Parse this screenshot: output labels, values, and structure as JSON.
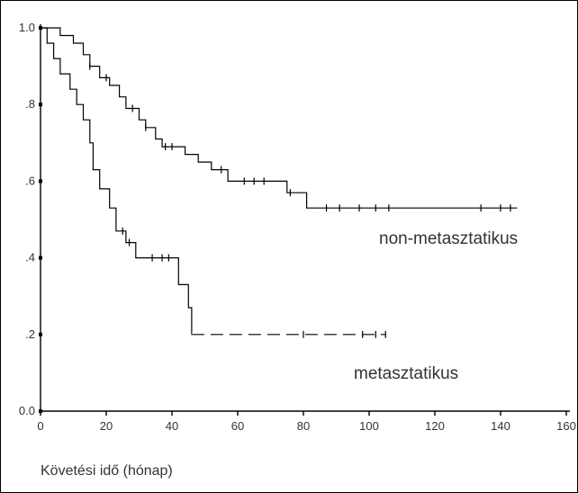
{
  "chart_data": {
    "type": "line",
    "title": "",
    "xlabel": "Követési idő (hónap)",
    "ylabel": "",
    "xlim": [
      0,
      160
    ],
    "ylim": [
      0,
      1
    ],
    "x_ticks": [
      0,
      20,
      40,
      60,
      80,
      100,
      120,
      140,
      160
    ],
    "y_ticks": [
      {
        "value": 0.0,
        "label": "0.0"
      },
      {
        "value": 0.2,
        "label": ".2"
      },
      {
        "value": 0.4,
        "label": ".4"
      },
      {
        "value": 0.6,
        "label": ".6"
      },
      {
        "value": 0.8,
        "label": ".8"
      },
      {
        "value": 1.0,
        "label": "1.0"
      }
    ],
    "grid": false,
    "series": [
      {
        "name": "non-metasztatikus",
        "style": "solid",
        "steps": [
          [
            0,
            1.0
          ],
          [
            6,
            1.0
          ],
          [
            6,
            0.98
          ],
          [
            10,
            0.98
          ],
          [
            10,
            0.96
          ],
          [
            13,
            0.96
          ],
          [
            13,
            0.93
          ],
          [
            15,
            0.93
          ],
          [
            15,
            0.9
          ],
          [
            18,
            0.9
          ],
          [
            18,
            0.87
          ],
          [
            21,
            0.87
          ],
          [
            21,
            0.85
          ],
          [
            24,
            0.85
          ],
          [
            24,
            0.82
          ],
          [
            26,
            0.82
          ],
          [
            26,
            0.79
          ],
          [
            30,
            0.79
          ],
          [
            30,
            0.76
          ],
          [
            32,
            0.76
          ],
          [
            32,
            0.74
          ],
          [
            35,
            0.74
          ],
          [
            35,
            0.71
          ],
          [
            37,
            0.71
          ],
          [
            37,
            0.69
          ],
          [
            44,
            0.69
          ],
          [
            44,
            0.67
          ],
          [
            48,
            0.67
          ],
          [
            48,
            0.65
          ],
          [
            52,
            0.65
          ],
          [
            52,
            0.63
          ],
          [
            57,
            0.63
          ],
          [
            57,
            0.6
          ],
          [
            75,
            0.6
          ],
          [
            75,
            0.57
          ],
          [
            81,
            0.57
          ],
          [
            81,
            0.53
          ],
          [
            145,
            0.53
          ]
        ],
        "censor_x": [
          15,
          20,
          28,
          32,
          38,
          40,
          55,
          62,
          65,
          68,
          76,
          87,
          91,
          97,
          102,
          106,
          134,
          140,
          143
        ]
      },
      {
        "name": "metasztatikus",
        "style": "dashed",
        "steps": [
          [
            0,
            1.0
          ],
          [
            2,
            1.0
          ],
          [
            2,
            0.96
          ],
          [
            4,
            0.96
          ],
          [
            4,
            0.92
          ],
          [
            6,
            0.92
          ],
          [
            6,
            0.88
          ],
          [
            9,
            0.88
          ],
          [
            9,
            0.84
          ],
          [
            11,
            0.84
          ],
          [
            11,
            0.8
          ],
          [
            13,
            0.8
          ],
          [
            13,
            0.76
          ],
          [
            15,
            0.76
          ],
          [
            15,
            0.7
          ],
          [
            16,
            0.7
          ],
          [
            16,
            0.63
          ],
          [
            18,
            0.63
          ],
          [
            18,
            0.58
          ],
          [
            21,
            0.58
          ],
          [
            21,
            0.53
          ],
          [
            23,
            0.53
          ],
          [
            23,
            0.47
          ],
          [
            26,
            0.47
          ],
          [
            26,
            0.44
          ],
          [
            29,
            0.44
          ],
          [
            29,
            0.4
          ],
          [
            42,
            0.4
          ],
          [
            42,
            0.33
          ],
          [
            45,
            0.33
          ],
          [
            45,
            0.27
          ],
          [
            46,
            0.27
          ],
          [
            46,
            0.2
          ],
          [
            105,
            0.2
          ]
        ],
        "censor_x": [
          25,
          27,
          34,
          37,
          39,
          80,
          98,
          102,
          105
        ]
      }
    ]
  }
}
